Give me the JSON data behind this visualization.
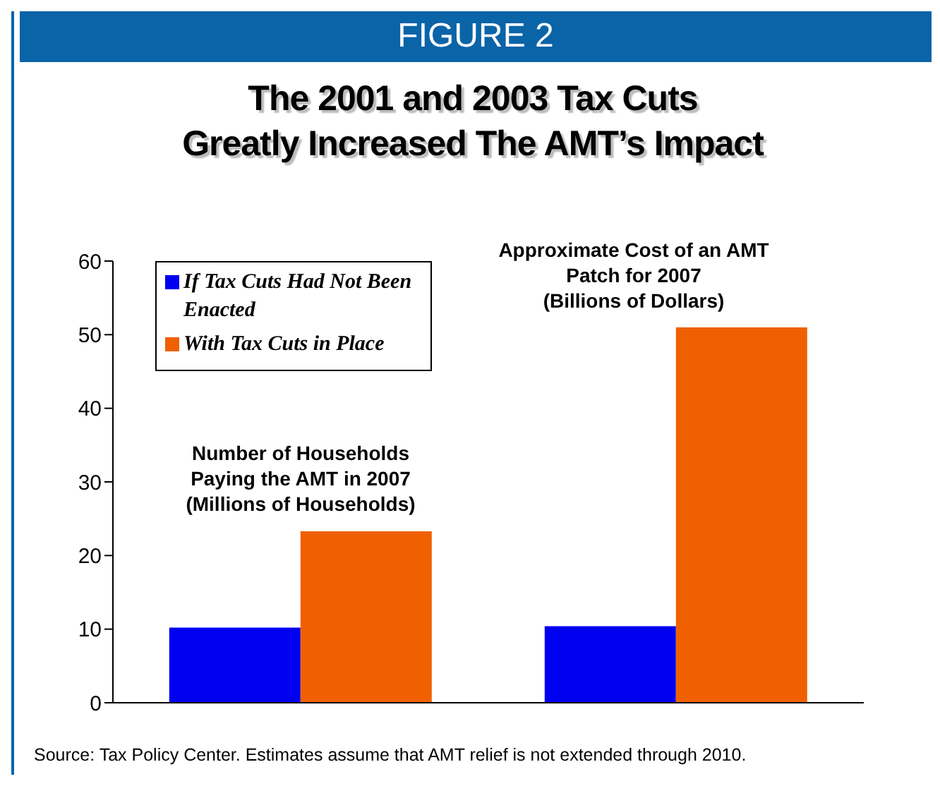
{
  "chart_data": {
    "type": "bar",
    "title": "The 2001 and 2003 Tax Cuts\nGreatly Increased The AMT’s Impact",
    "categories": [
      null,
      null
    ],
    "series": [
      {
        "name": "If Tax Cuts Had Not Been Enacted",
        "color": "#0000f0",
        "values": [
          10.2,
          10.4
        ]
      },
      {
        "name": "With Tax Cuts in Place",
        "color": "#f06000",
        "values": [
          23.3,
          51.0
        ]
      }
    ],
    "ylim": [
      0,
      60
    ],
    "yticks": [
      0,
      10,
      20,
      30,
      40,
      50,
      60
    ],
    "grid": false,
    "legend": "top left",
    "annotations": [
      "FIGURE 2",
      "Number of Households\nPaying the AMT in 2007\n(Millions of Households)",
      "Approximate Cost of an AMT\nPatch for 2007\n(Billions of Dollars)",
      "Source:  Tax Policy Center.  Estimates assume that AMT relief is not extended through 2010."
    ]
  }
}
